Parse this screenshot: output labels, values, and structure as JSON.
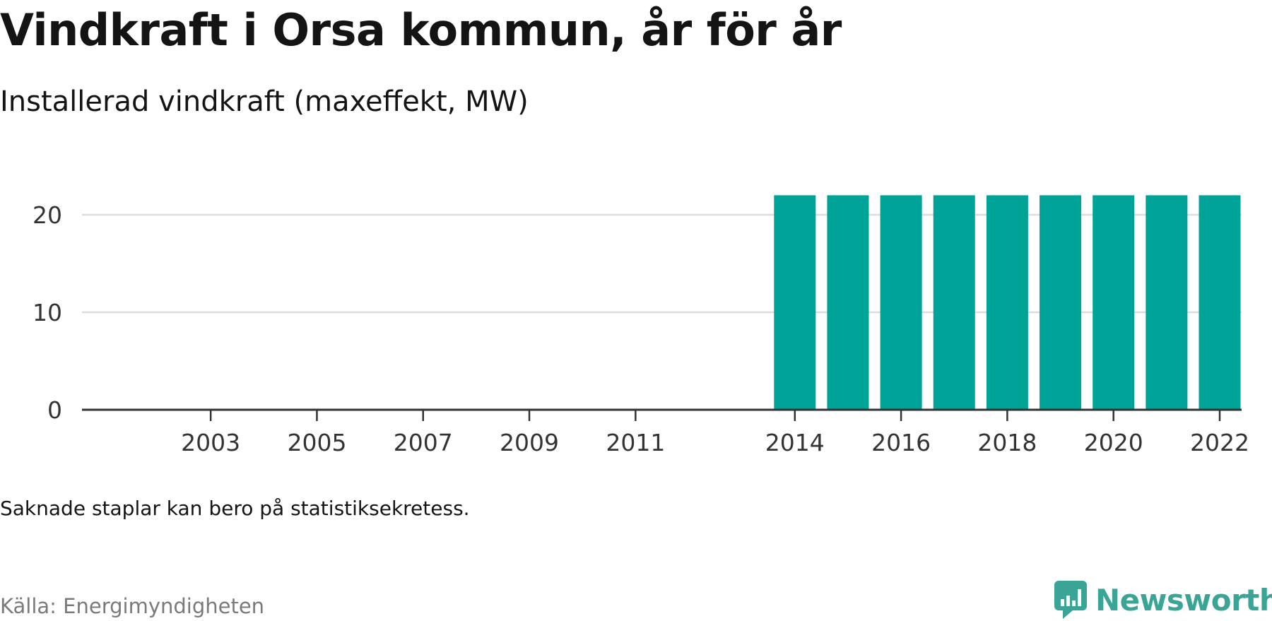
{
  "header": {
    "title": "Vindkraft i Orsa kommun, år för år",
    "subtitle": "Installerad vindkraft (maxeffekt, MW)"
  },
  "footer": {
    "note": "Saknade staplar kan bero på statistiksekretess.",
    "source": "Källa: Energimyndigheten",
    "brand": "Newsworthy",
    "brand_icon": "newsworthy-logo-icon"
  },
  "colors": {
    "bar": "#00a398",
    "gridline": "#dcdcdc",
    "axis": "#333333",
    "brand": "#3aa597"
  },
  "chart_data": {
    "type": "bar",
    "title": "Vindkraft i Orsa kommun, år för år",
    "subtitle": "Installerad vindkraft (maxeffekt, MW)",
    "xlabel": "",
    "ylabel": "",
    "categories": [
      2002,
      2003,
      2004,
      2005,
      2006,
      2007,
      2008,
      2009,
      2010,
      2011,
      2012,
      2013,
      2014,
      2015,
      2016,
      2017,
      2018,
      2019,
      2020,
      2021,
      2022
    ],
    "values": [
      null,
      null,
      null,
      null,
      null,
      null,
      null,
      null,
      null,
      null,
      null,
      null,
      22,
      22,
      22,
      22,
      22,
      22,
      22,
      22,
      22
    ],
    "x_tick_labels": [
      "2003",
      "2005",
      "2007",
      "2009",
      "2011",
      "2014",
      "2016",
      "2018",
      "2020",
      "2022"
    ],
    "y_ticks": [
      0,
      10,
      20
    ],
    "ylim": [
      0,
      22
    ],
    "grid": true,
    "legend": false
  }
}
